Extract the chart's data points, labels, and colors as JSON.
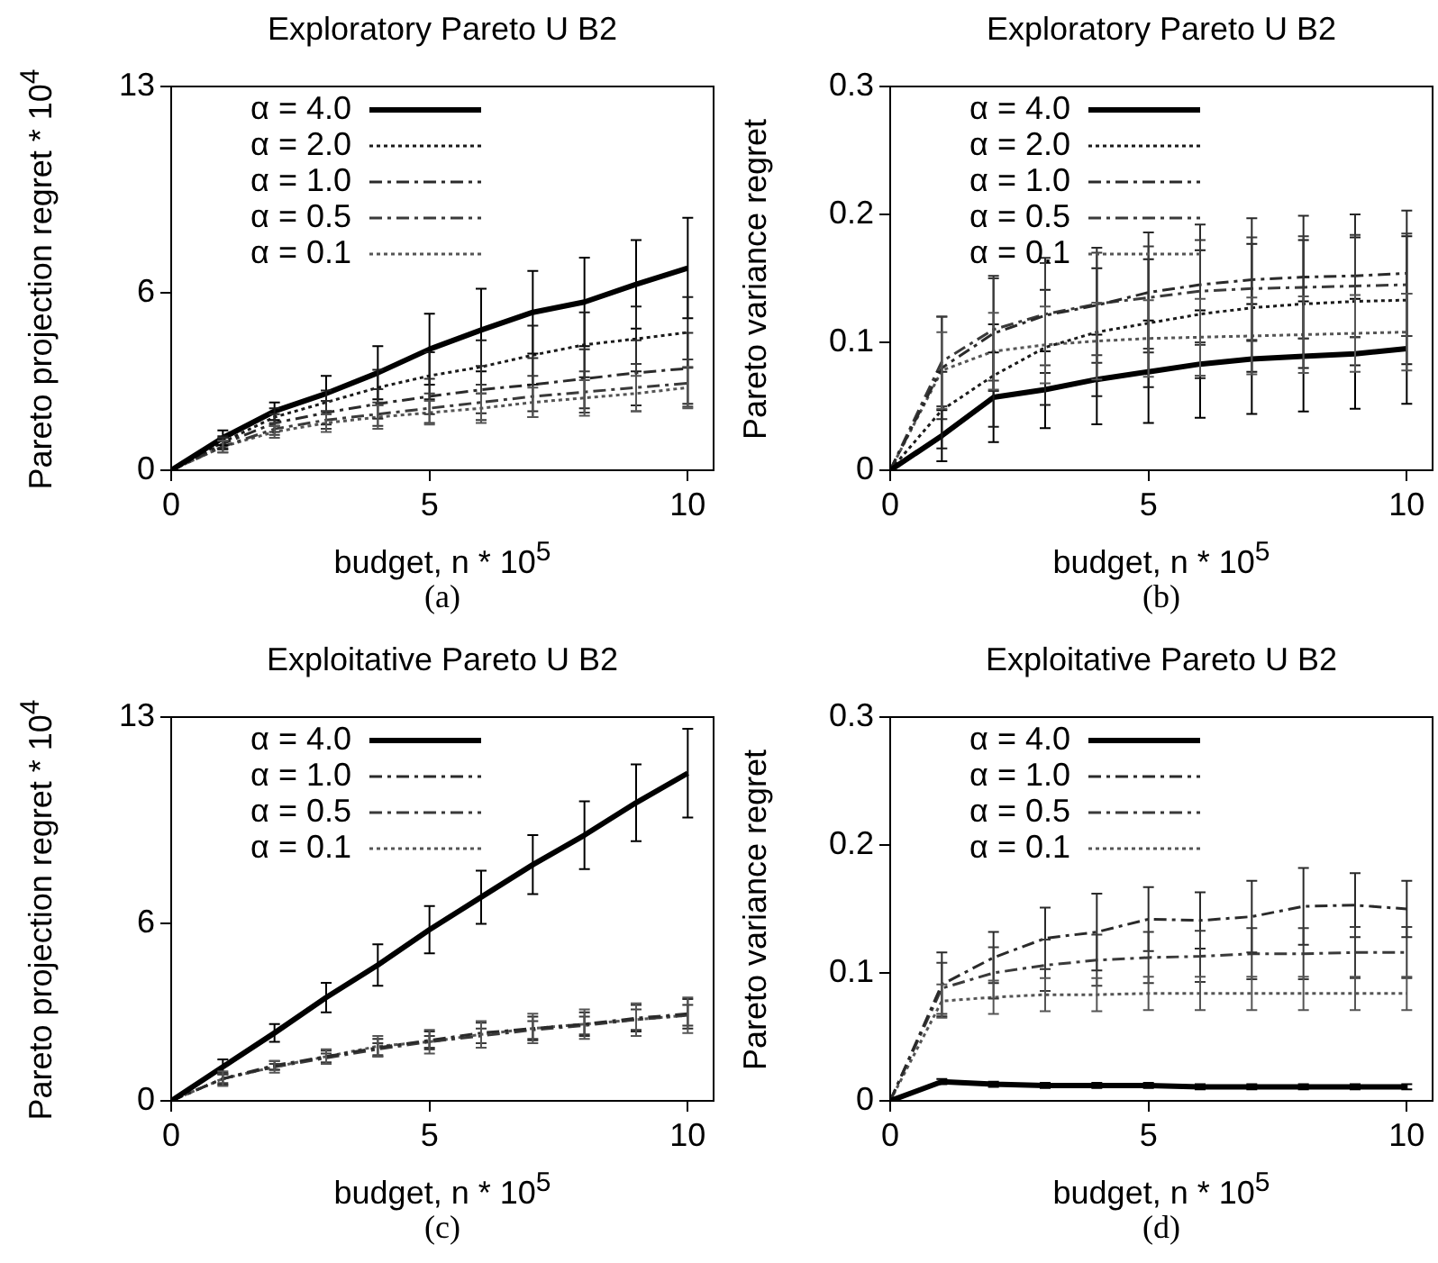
{
  "chart_data": [
    {
      "type": "line",
      "title": "Exploratory Pareto U  B2",
      "xlabel": "budget, n * 10$^{5}$",
      "ylabel": "Pareto projection regret * 10$^{4}$",
      "annotations": [
        "(a)"
      ],
      "x": [
        0,
        1,
        2,
        3,
        4,
        5,
        6,
        7,
        8,
        9,
        10
      ],
      "xlim": [
        0,
        10.5
      ],
      "xticks": [
        0,
        5,
        10
      ],
      "ylim": [
        0,
        13
      ],
      "yticks": [
        0,
        6,
        13
      ],
      "grid": false,
      "legend": "top left",
      "series": [
        {
          "name": "α = 4.0",
          "color": "#000000",
          "line_style": "solid",
          "values": [
            0,
            1.1,
            2.0,
            2.6,
            3.3,
            4.1,
            4.75,
            5.35,
            5.7,
            6.3,
            6.85
          ],
          "errors": [
            null,
            0.25,
            0.3,
            0.6,
            0.9,
            1.2,
            1.4,
            1.4,
            1.5,
            1.5,
            1.7
          ]
        },
        {
          "name": "α = 2.0",
          "color": "#1a1a1a",
          "line_style": "dotted",
          "values": [
            0,
            0.95,
            1.8,
            2.3,
            2.8,
            3.2,
            3.5,
            3.9,
            4.25,
            4.45,
            4.67
          ],
          "errors": [
            null,
            0.2,
            0.3,
            0.4,
            0.6,
            0.8,
            0.9,
            1.0,
            1.1,
            1.1,
            1.2
          ]
        },
        {
          "name": "α = 1.0",
          "color": "#2a2a2a",
          "line_style": "dashed",
          "values": [
            0,
            0.9,
            1.6,
            1.95,
            2.25,
            2.5,
            2.73,
            2.9,
            3.1,
            3.3,
            3.45
          ],
          "errors": [
            null,
            0.2,
            0.3,
            0.4,
            0.5,
            0.6,
            0.8,
            0.9,
            1.0,
            1.1,
            1.2
          ]
        },
        {
          "name": "α = 0.5",
          "color": "#3a3a3a",
          "line_style": "dashed",
          "values": [
            0,
            0.8,
            1.4,
            1.7,
            1.9,
            2.1,
            2.3,
            2.5,
            2.65,
            2.8,
            2.95
          ],
          "errors": [
            null,
            0.2,
            0.2,
            0.3,
            0.4,
            0.5,
            0.6,
            0.7,
            0.7,
            0.8,
            0.8
          ]
        },
        {
          "name": "α = 0.1",
          "color": "#555555",
          "line_style": "dotted",
          "values": [
            0,
            0.8,
            1.3,
            1.6,
            1.8,
            1.95,
            2.1,
            2.3,
            2.45,
            2.6,
            2.8
          ],
          "errors": [
            null,
            0.2,
            0.2,
            0.3,
            0.4,
            0.4,
            0.5,
            0.5,
            0.6,
            0.6,
            0.7
          ]
        }
      ]
    },
    {
      "type": "line",
      "title": "Exploratory Pareto U  B2",
      "xlabel": "budget, n * 10$^{5}$",
      "ylabel": "Pareto variance regret",
      "annotations": [
        "(b)"
      ],
      "x": [
        0,
        1,
        2,
        3,
        4,
        5,
        6,
        7,
        8,
        9,
        10
      ],
      "xlim": [
        0,
        10.5
      ],
      "xticks": [
        0,
        5,
        10
      ],
      "ylim": [
        0,
        0.3
      ],
      "yticks": [
        0,
        0.1,
        0.2,
        0.3
      ],
      "grid": false,
      "legend": "top left",
      "series": [
        {
          "name": "α = 4.0",
          "color": "#000000",
          "line_style": "solid",
          "values": [
            0,
            0.027,
            0.057,
            0.063,
            0.071,
            0.077,
            0.083,
            0.087,
            0.089,
            0.091,
            0.095
          ],
          "errors": [
            null,
            0.02,
            0.035,
            0.03,
            0.035,
            0.04,
            0.042,
            0.043,
            0.043,
            0.043,
            0.043
          ]
        },
        {
          "name": "α = 2.0",
          "color": "#1a1a1a",
          "line_style": "dotted",
          "values": [
            0,
            0.047,
            0.074,
            0.096,
            0.108,
            0.115,
            0.122,
            0.127,
            0.13,
            0.132,
            0.133
          ],
          "errors": [
            null,
            0.03,
            0.04,
            0.045,
            0.05,
            0.05,
            0.05,
            0.05,
            0.05,
            0.05,
            0.05
          ]
        },
        {
          "name": "α = 1.0",
          "color": "#2a2a2a",
          "line_style": "dashed",
          "values": [
            0,
            0.08,
            0.107,
            0.121,
            0.129,
            0.139,
            0.145,
            0.149,
            0.151,
            0.152,
            0.154
          ],
          "errors": [
            null,
            0.04,
            0.045,
            0.045,
            0.045,
            0.047,
            0.047,
            0.048,
            0.048,
            0.048,
            0.049
          ]
        },
        {
          "name": "α = 0.5",
          "color": "#3a3a3a",
          "line_style": "dashed",
          "values": [
            0,
            0.085,
            0.11,
            0.122,
            0.13,
            0.135,
            0.14,
            0.142,
            0.143,
            0.144,
            0.145
          ],
          "errors": [
            null,
            0.035,
            0.04,
            0.04,
            0.04,
            0.04,
            0.04,
            0.04,
            0.04,
            0.04,
            0.04
          ]
        },
        {
          "name": "α = 0.1",
          "color": "#555555",
          "line_style": "dotted",
          "values": [
            0,
            0.078,
            0.093,
            0.098,
            0.101,
            0.103,
            0.104,
            0.105,
            0.106,
            0.107,
            0.108
          ],
          "errors": [
            null,
            0.03,
            0.03,
            0.03,
            0.03,
            0.03,
            0.03,
            0.03,
            0.03,
            0.03,
            0.03
          ]
        }
      ]
    },
    {
      "type": "line",
      "title": "Exploitative Pareto U  B2",
      "xlabel": "budget, n * 10$^{5}$",
      "ylabel": "Pareto projection regret * 10$^{4}$",
      "annotations": [
        "(c)"
      ],
      "x": [
        0,
        1,
        2,
        3,
        4,
        5,
        6,
        7,
        8,
        9,
        10
      ],
      "xlim": [
        0,
        10.5
      ],
      "xticks": [
        0,
        5,
        10
      ],
      "ylim": [
        0,
        13
      ],
      "yticks": [
        0,
        6,
        13
      ],
      "grid": false,
      "legend": "top left",
      "series": [
        {
          "name": "α = 4.0",
          "color": "#000000",
          "line_style": "solid",
          "values": [
            0,
            1.15,
            2.3,
            3.5,
            4.6,
            5.8,
            6.9,
            8.0,
            9.0,
            10.1,
            11.1
          ],
          "errors": [
            null,
            0.25,
            0.3,
            0.5,
            0.7,
            0.8,
            0.9,
            1.0,
            1.15,
            1.3,
            1.5
          ]
        },
        {
          "name": "α = 1.0",
          "color": "#2a2a2a",
          "line_style": "dashed",
          "values": [
            0,
            0.75,
            1.2,
            1.5,
            1.8,
            2.05,
            2.3,
            2.45,
            2.6,
            2.8,
            2.95
          ],
          "errors": [
            null,
            0.2,
            0.15,
            0.2,
            0.3,
            0.3,
            0.35,
            0.4,
            0.4,
            0.45,
            0.5
          ]
        },
        {
          "name": "α = 0.5",
          "color": "#3a3a3a",
          "line_style": "dashed",
          "values": [
            0,
            0.75,
            1.15,
            1.45,
            1.75,
            2.0,
            2.2,
            2.4,
            2.55,
            2.75,
            2.9
          ],
          "errors": [
            null,
            0.15,
            0.1,
            0.15,
            0.2,
            0.2,
            0.25,
            0.3,
            0.3,
            0.35,
            0.35
          ]
        },
        {
          "name": "α = 0.1",
          "color": "#555555",
          "line_style": "dotted",
          "values": [
            0,
            0.75,
            1.15,
            1.5,
            1.85,
            2.0,
            2.25,
            2.45,
            2.6,
            2.75,
            2.9
          ],
          "errors": [
            null,
            0.25,
            0.2,
            0.25,
            0.35,
            0.4,
            0.45,
            0.5,
            0.5,
            0.55,
            0.6
          ]
        }
      ]
    },
    {
      "type": "line",
      "title": "Exploitative Pareto U  B2",
      "xlabel": "budget, n * 10$^{5}$",
      "ylabel": "Pareto variance regret",
      "annotations": [
        "(d)"
      ],
      "x": [
        0,
        1,
        2,
        3,
        4,
        5,
        6,
        7,
        8,
        9,
        10
      ],
      "xlim": [
        0,
        10.5
      ],
      "xticks": [
        0,
        5,
        10
      ],
      "ylim": [
        0,
        0.3
      ],
      "yticks": [
        0,
        0.1,
        0.2,
        0.3
      ],
      "grid": false,
      "legend": "top left",
      "series": [
        {
          "name": "α = 4.0",
          "color": "#000000",
          "line_style": "solid",
          "values": [
            0,
            0.015,
            0.013,
            0.012,
            0.012,
            0.012,
            0.011,
            0.011,
            0.011,
            0.011,
            0.011
          ],
          "errors": [
            null,
            0.002,
            0.002,
            0.002,
            0.002,
            0.002,
            0.002,
            0.002,
            0.002,
            0.002,
            0.002
          ]
        },
        {
          "name": "α = 1.0",
          "color": "#2a2a2a",
          "line_style": "dashed",
          "values": [
            0,
            0.091,
            0.112,
            0.127,
            0.132,
            0.142,
            0.141,
            0.144,
            0.152,
            0.153,
            0.15
          ],
          "errors": [
            null,
            0.025,
            0.02,
            0.024,
            0.03,
            0.025,
            0.022,
            0.028,
            0.03,
            0.025,
            0.022
          ]
        },
        {
          "name": "α = 0.5",
          "color": "#3a3a3a",
          "line_style": "dashed",
          "values": [
            0,
            0.088,
            0.1,
            0.106,
            0.11,
            0.112,
            0.113,
            0.115,
            0.115,
            0.116,
            0.116
          ],
          "errors": [
            null,
            0.02,
            0.02,
            0.02,
            0.02,
            0.02,
            0.02,
            0.02,
            0.02,
            0.02,
            0.02
          ]
        },
        {
          "name": "α = 0.1",
          "color": "#555555",
          "line_style": "dotted",
          "values": [
            0,
            0.078,
            0.081,
            0.083,
            0.083,
            0.084,
            0.084,
            0.084,
            0.084,
            0.084,
            0.084
          ],
          "errors": [
            null,
            0.013,
            0.013,
            0.013,
            0.013,
            0.013,
            0.013,
            0.013,
            0.013,
            0.013,
            0.013
          ]
        }
      ]
    }
  ]
}
